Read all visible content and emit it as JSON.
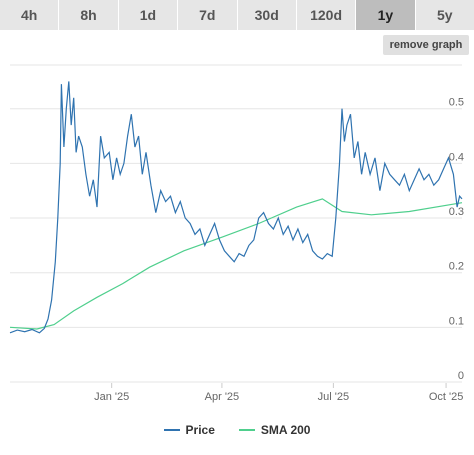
{
  "tabs": [
    {
      "label": "4h",
      "active": false
    },
    {
      "label": "8h",
      "active": false
    },
    {
      "label": "1d",
      "active": false
    },
    {
      "label": "7d",
      "active": false
    },
    {
      "label": "30d",
      "active": false
    },
    {
      "label": "120d",
      "active": false
    },
    {
      "label": "1y",
      "active": true
    },
    {
      "label": "5y",
      "active": false
    }
  ],
  "remove_graph_label": "remove graph",
  "colors": {
    "price": "#2f73b0",
    "sma": "#4fcf8d",
    "grid": "#e6e6e6",
    "active_tab": "#bdbdbd",
    "tab": "#e6e6e6"
  },
  "chart_data": {
    "type": "line",
    "x_ticks": [
      "Jan '25",
      "Apr '25",
      "Jul '25",
      "Oct '25"
    ],
    "y_ticks": [
      "0",
      "0.1",
      "0.2",
      "0.3",
      "0.4",
      "0.5"
    ],
    "ylim": [
      0,
      0.58
    ],
    "xlim": [
      "2024-10-10",
      "2025-10-14"
    ],
    "grid": true,
    "legend_position": "bottom",
    "series": [
      {
        "name": "Price",
        "color": "#2f73b0",
        "points": [
          [
            "2024-10-10",
            0.09
          ],
          [
            "2024-10-16",
            0.095
          ],
          [
            "2024-10-22",
            0.092
          ],
          [
            "2024-10-28",
            0.096
          ],
          [
            "2024-11-03",
            0.09
          ],
          [
            "2024-11-07",
            0.098
          ],
          [
            "2024-11-10",
            0.115
          ],
          [
            "2024-11-13",
            0.15
          ],
          [
            "2024-11-16",
            0.22
          ],
          [
            "2024-11-18",
            0.3
          ],
          [
            "2024-11-20",
            0.4
          ],
          [
            "2024-11-21",
            0.545
          ],
          [
            "2024-11-23",
            0.43
          ],
          [
            "2024-11-25",
            0.5
          ],
          [
            "2024-11-27",
            0.55
          ],
          [
            "2024-11-29",
            0.47
          ],
          [
            "2024-12-01",
            0.52
          ],
          [
            "2024-12-03",
            0.42
          ],
          [
            "2024-12-05",
            0.45
          ],
          [
            "2024-12-08",
            0.43
          ],
          [
            "2024-12-11",
            0.38
          ],
          [
            "2024-12-14",
            0.34
          ],
          [
            "2024-12-17",
            0.37
          ],
          [
            "2024-12-20",
            0.32
          ],
          [
            "2024-12-23",
            0.45
          ],
          [
            "2024-12-26",
            0.41
          ],
          [
            "2024-12-30",
            0.42
          ],
          [
            "2025-01-02",
            0.37
          ],
          [
            "2025-01-05",
            0.41
          ],
          [
            "2025-01-08",
            0.38
          ],
          [
            "2025-01-11",
            0.4
          ],
          [
            "2025-01-14",
            0.45
          ],
          [
            "2025-01-17",
            0.49
          ],
          [
            "2025-01-20",
            0.43
          ],
          [
            "2025-01-23",
            0.45
          ],
          [
            "2025-01-26",
            0.38
          ],
          [
            "2025-01-29",
            0.42
          ],
          [
            "2025-02-02",
            0.36
          ],
          [
            "2025-02-06",
            0.31
          ],
          [
            "2025-02-10",
            0.35
          ],
          [
            "2025-02-14",
            0.33
          ],
          [
            "2025-02-18",
            0.34
          ],
          [
            "2025-02-22",
            0.31
          ],
          [
            "2025-02-26",
            0.33
          ],
          [
            "2025-03-02",
            0.3
          ],
          [
            "2025-03-06",
            0.29
          ],
          [
            "2025-03-10",
            0.27
          ],
          [
            "2025-03-14",
            0.28
          ],
          [
            "2025-03-18",
            0.25
          ],
          [
            "2025-03-22",
            0.27
          ],
          [
            "2025-03-26",
            0.29
          ],
          [
            "2025-03-30",
            0.26
          ],
          [
            "2025-04-03",
            0.24
          ],
          [
            "2025-04-07",
            0.23
          ],
          [
            "2025-04-11",
            0.22
          ],
          [
            "2025-04-15",
            0.235
          ],
          [
            "2025-04-19",
            0.23
          ],
          [
            "2025-04-23",
            0.25
          ],
          [
            "2025-04-27",
            0.26
          ],
          [
            "2025-05-01",
            0.3
          ],
          [
            "2025-05-05",
            0.31
          ],
          [
            "2025-05-09",
            0.29
          ],
          [
            "2025-05-13",
            0.28
          ],
          [
            "2025-05-17",
            0.3
          ],
          [
            "2025-05-21",
            0.27
          ],
          [
            "2025-05-25",
            0.285
          ],
          [
            "2025-05-29",
            0.26
          ],
          [
            "2025-06-02",
            0.28
          ],
          [
            "2025-06-06",
            0.255
          ],
          [
            "2025-06-10",
            0.27
          ],
          [
            "2025-06-14",
            0.24
          ],
          [
            "2025-06-18",
            0.23
          ],
          [
            "2025-06-22",
            0.225
          ],
          [
            "2025-06-26",
            0.235
          ],
          [
            "2025-06-30",
            0.23
          ],
          [
            "2025-07-03",
            0.3
          ],
          [
            "2025-07-06",
            0.4
          ],
          [
            "2025-07-08",
            0.5
          ],
          [
            "2025-07-10",
            0.44
          ],
          [
            "2025-07-12",
            0.47
          ],
          [
            "2025-07-15",
            0.49
          ],
          [
            "2025-07-18",
            0.41
          ],
          [
            "2025-07-21",
            0.44
          ],
          [
            "2025-07-24",
            0.38
          ],
          [
            "2025-07-27",
            0.42
          ],
          [
            "2025-07-31",
            0.38
          ],
          [
            "2025-08-04",
            0.41
          ],
          [
            "2025-08-08",
            0.35
          ],
          [
            "2025-08-12",
            0.4
          ],
          [
            "2025-08-16",
            0.38
          ],
          [
            "2025-08-20",
            0.37
          ],
          [
            "2025-08-24",
            0.36
          ],
          [
            "2025-08-28",
            0.38
          ],
          [
            "2025-09-01",
            0.35
          ],
          [
            "2025-09-05",
            0.37
          ],
          [
            "2025-09-09",
            0.39
          ],
          [
            "2025-09-13",
            0.37
          ],
          [
            "2025-09-17",
            0.38
          ],
          [
            "2025-09-21",
            0.36
          ],
          [
            "2025-09-25",
            0.37
          ],
          [
            "2025-09-29",
            0.39
          ],
          [
            "2025-10-03",
            0.41
          ],
          [
            "2025-10-07",
            0.38
          ],
          [
            "2025-10-10",
            0.32
          ],
          [
            "2025-10-12",
            0.34
          ],
          [
            "2025-10-14",
            0.335
          ]
        ]
      },
      {
        "name": "SMA 200",
        "color": "#4fcf8d",
        "points": [
          [
            "2024-10-10",
            0.1
          ],
          [
            "2024-11-01",
            0.097
          ],
          [
            "2024-11-15",
            0.105
          ],
          [
            "2024-12-01",
            0.13
          ],
          [
            "2024-12-20",
            0.155
          ],
          [
            "2025-01-10",
            0.18
          ],
          [
            "2025-02-01",
            0.21
          ],
          [
            "2025-03-01",
            0.24
          ],
          [
            "2025-04-01",
            0.265
          ],
          [
            "2025-05-01",
            0.29
          ],
          [
            "2025-06-01",
            0.32
          ],
          [
            "2025-06-22",
            0.335
          ],
          [
            "2025-07-08",
            0.312
          ],
          [
            "2025-08-01",
            0.306
          ],
          [
            "2025-09-01",
            0.312
          ],
          [
            "2025-10-14",
            0.328
          ]
        ]
      }
    ]
  }
}
